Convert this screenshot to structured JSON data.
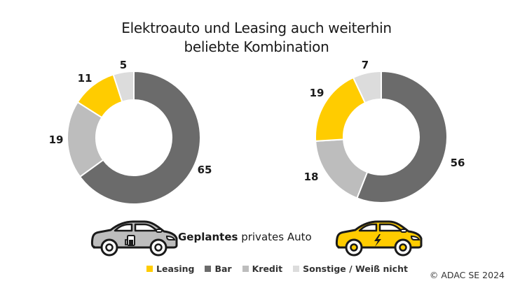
{
  "title": {
    "line1": "Elektroauto und Leasing auch weiterhin",
    "line2": "beliebte Kombination"
  },
  "colors": {
    "Leasing": "#FFCC00",
    "Bar": "#6B6B6B",
    "Kredit": "#BDBDBD",
    "Sonstige": "#DCDCDC"
  },
  "caption": {
    "bold": "Geplantes",
    "rest": " privates Auto"
  },
  "legend": [
    {
      "label": "Leasing",
      "color": "#FFCC00"
    },
    {
      "label": "Bar",
      "color": "#6B6B6B"
    },
    {
      "label": "Kredit",
      "color": "#BDBDBD"
    },
    {
      "label": "Sonstige / Weiß nicht",
      "color": "#DCDCDC"
    }
  ],
  "copyright": "© ADAC SE 2024",
  "icons": {
    "left_car": "combustion-car-icon",
    "right_car": "electric-car-icon"
  },
  "chart_data": [
    {
      "type": "pie",
      "subtype": "donut",
      "title": "Verbrenner (geplantes privates Auto)",
      "categories": [
        "Bar",
        "Kredit",
        "Leasing",
        "Sonstige / Weiß nicht"
      ],
      "values": [
        65,
        19,
        11,
        5
      ],
      "colors": [
        "#6B6B6B",
        "#BDBDBD",
        "#FFCC00",
        "#DCDCDC"
      ],
      "start_angle": "12 o'clock, clockwise",
      "unit": "%"
    },
    {
      "type": "pie",
      "subtype": "donut",
      "title": "Elektroauto (geplantes privates Auto)",
      "categories": [
        "Bar",
        "Kredit",
        "Leasing",
        "Sonstige / Weiß nicht"
      ],
      "values": [
        56,
        18,
        19,
        7
      ],
      "colors": [
        "#6B6B6B",
        "#BDBDBD",
        "#FFCC00",
        "#DCDCDC"
      ],
      "start_angle": "12 o'clock, clockwise",
      "unit": "%"
    }
  ],
  "labels": {
    "left": {
      "Bar": "65",
      "Kredit": "19",
      "Leasing": "11",
      "Sonstige": "5"
    },
    "right": {
      "Bar": "56",
      "Kredit": "18",
      "Leasing": "19",
      "Sonstige": "7"
    }
  }
}
